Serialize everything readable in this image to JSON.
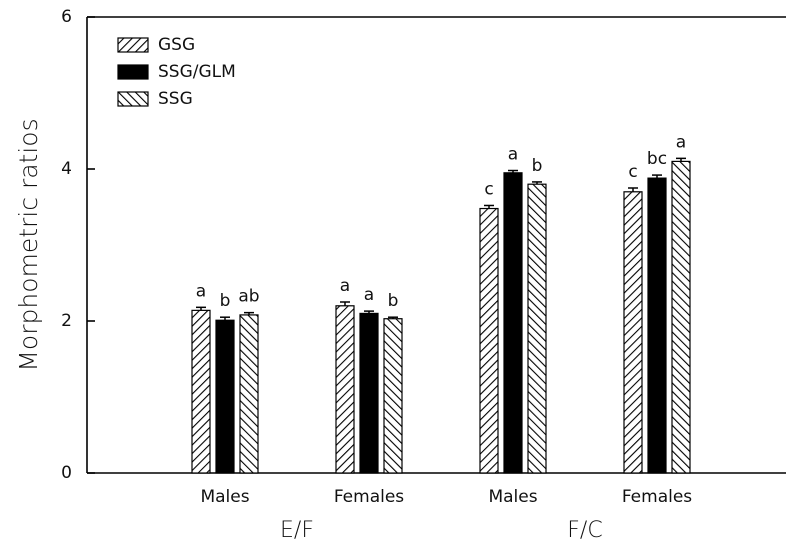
{
  "chart_data": {
    "type": "bar",
    "ylabel": "Morphometric ratios",
    "categories": [
      "Males",
      "Females",
      "Males",
      "Females"
    ],
    "group_labels": [
      "E/F",
      "F/C"
    ],
    "series": [
      {
        "name": "GSG",
        "color": "#000000",
        "hatch": "forward",
        "values": [
          2.14,
          2.2,
          3.48,
          3.7
        ],
        "errors": [
          0.04,
          0.05,
          0.04,
          0.05
        ],
        "letters": [
          "a",
          "a",
          "c",
          "c"
        ]
      },
      {
        "name": "SSG/GLM",
        "color": "#000000",
        "hatch": "solid",
        "values": [
          2.01,
          2.1,
          3.95,
          3.88
        ],
        "errors": [
          0.04,
          0.03,
          0.03,
          0.04
        ],
        "letters": [
          "b",
          "a",
          "a",
          "bc"
        ]
      },
      {
        "name": "SSG",
        "color": "#000000",
        "hatch": "backward",
        "values": [
          2.08,
          2.03,
          3.8,
          4.1
        ],
        "errors": [
          0.03,
          0.02,
          0.03,
          0.04
        ],
        "letters": [
          "ab",
          "b",
          "b",
          "a"
        ]
      }
    ],
    "ylim": [
      0,
      6
    ],
    "yticks": [
      0,
      2,
      4,
      6
    ]
  }
}
